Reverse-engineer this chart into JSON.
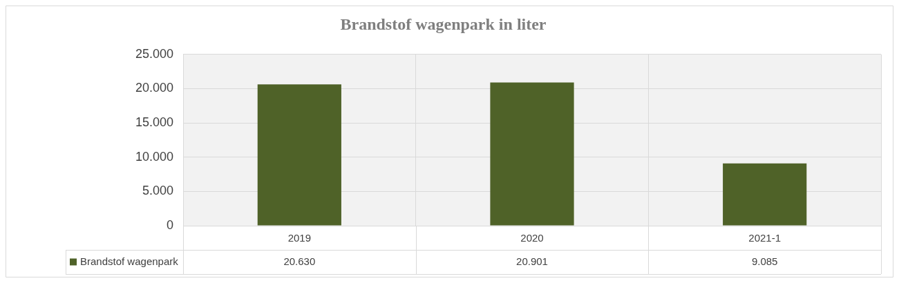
{
  "chart_data": {
    "type": "bar",
    "title": "Brandstof wagenpark in liter",
    "categories": [
      "2019",
      "2020",
      "2021-1"
    ],
    "series": [
      {
        "name": "Brandstof wagenpark",
        "color": "#4f6228",
        "values": [
          20630,
          20901,
          9085
        ],
        "value_labels": [
          "20.630",
          "20.901",
          "9.085"
        ]
      }
    ],
    "ylim": [
      0,
      25000
    ],
    "yticks": [
      {
        "value": 0,
        "label": "0"
      },
      {
        "value": 5000,
        "label": "5.000"
      },
      {
        "value": 10000,
        "label": "10.000"
      },
      {
        "value": 15000,
        "label": "15.000"
      },
      {
        "value": 20000,
        "label": "20.000"
      },
      {
        "value": 25000,
        "label": "25.000"
      }
    ],
    "grid": true,
    "legend": "bottom"
  }
}
